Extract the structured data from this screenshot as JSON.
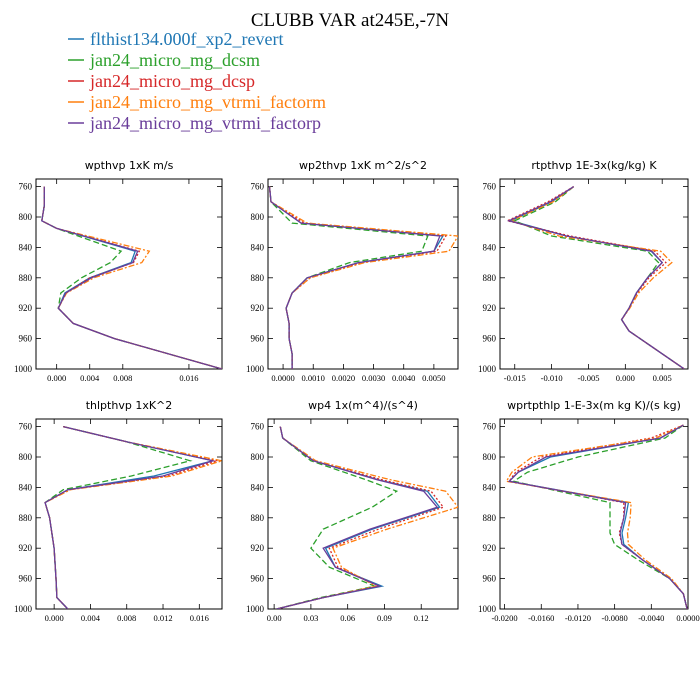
{
  "title": "CLUBB VAR at245E,-7N",
  "legend": [
    {
      "label": "flthist134.000f_xp2_revert",
      "color": "#1f77b4",
      "dash": ""
    },
    {
      "label": "jan24_micro_mg_dcsm",
      "color": "#2ca02c",
      "dash": "6,3"
    },
    {
      "label": "jan24_micro_mg_dcsp",
      "color": "#d62728",
      "dash": "2,2"
    },
    {
      "label": "jan24_micro_mg_vtrmi_factorm",
      "color": "#ff7f0e",
      "dash": "6,2,2,2"
    },
    {
      "label": "jan24_micro_mg_vtrmi_factorp",
      "color": "#6a3d9a",
      "dash": ""
    }
  ],
  "chart_data": [
    {
      "type": "line",
      "title": "wpthvp  1xK m/s",
      "xlim": [
        -0.0025,
        0.02
      ],
      "xticks": [
        0.0,
        0.004,
        0.008,
        0.016
      ],
      "xtick_labels": [
        "0.000",
        "0.004",
        "0.008",
        "0.016"
      ],
      "ylim": [
        750,
        1000
      ],
      "yticks": [
        760,
        800,
        840,
        880,
        920,
        960,
        1000
      ],
      "y": [
        760,
        785,
        805,
        815,
        845,
        860,
        880,
        900,
        920,
        940,
        960,
        1000
      ],
      "series": [
        {
          "name": "flthist134.000f_xp2_revert",
          "values": [
            -0.0015,
            -0.0015,
            -0.0018,
            0.0,
            0.0095,
            0.009,
            0.004,
            0.001,
            0.0002,
            0.002,
            0.007,
            0.02
          ]
        },
        {
          "name": "jan24_micro_mg_dcsm",
          "values": [
            -0.0015,
            -0.0015,
            -0.0018,
            0.0,
            0.0078,
            0.0065,
            0.003,
            0.0005,
            0.0002,
            0.002,
            0.007,
            0.02
          ]
        },
        {
          "name": "jan24_micro_mg_dcsp",
          "values": [
            -0.0015,
            -0.0015,
            -0.0018,
            0.0,
            0.01,
            0.0093,
            0.004,
            0.0011,
            0.0002,
            0.002,
            0.007,
            0.02
          ]
        },
        {
          "name": "jan24_micro_mg_vtrmi_factorm",
          "values": [
            -0.0015,
            -0.0015,
            -0.0018,
            0.0,
            0.0112,
            0.0103,
            0.0045,
            0.0012,
            0.0002,
            0.002,
            0.007,
            0.02
          ]
        },
        {
          "name": "jan24_micro_mg_vtrmi_factorp",
          "values": [
            -0.0015,
            -0.0015,
            -0.0018,
            0.0,
            0.0098,
            0.0092,
            0.0042,
            0.0011,
            0.0002,
            0.002,
            0.007,
            0.02
          ]
        }
      ]
    },
    {
      "type": "line",
      "title": "wp2thvp  1xK m^2/s^2",
      "xlim": [
        -0.0005,
        0.0058
      ],
      "xticks": [
        0.0,
        0.001,
        0.002,
        0.003,
        0.004,
        0.005
      ],
      "xtick_labels": [
        "0.0000",
        "0.0010",
        "0.0020",
        "0.0030",
        "0.0040",
        "0.0050"
      ],
      "ylim": [
        750,
        1000
      ],
      "yticks": [
        760,
        800,
        840,
        880,
        920,
        960,
        1000
      ],
      "y": [
        760,
        780,
        808,
        825,
        845,
        860,
        880,
        900,
        920,
        940,
        960,
        980,
        1000
      ],
      "series": [
        {
          "name": "flthist134.000f_xp2_revert",
          "values": [
            -0.00045,
            -0.0004,
            0.0006,
            0.0053,
            0.005,
            0.0025,
            0.0008,
            0.0003,
            0.0001,
            0.0002,
            0.0002,
            0.0003,
            0.0003
          ]
        },
        {
          "name": "jan24_micro_mg_dcsm",
          "values": [
            -0.00045,
            -0.0004,
            0.0003,
            0.0048,
            0.0046,
            0.0022,
            0.0008,
            0.0003,
            0.0001,
            0.0002,
            0.0002,
            0.0003,
            0.0003
          ]
        },
        {
          "name": "jan24_micro_mg_dcsp",
          "values": [
            -0.00045,
            -0.0004,
            0.0007,
            0.0054,
            0.0051,
            0.0026,
            0.0009,
            0.0003,
            0.0001,
            0.0002,
            0.0002,
            0.0003,
            0.0003
          ]
        },
        {
          "name": "jan24_micro_mg_vtrmi_factorm",
          "values": [
            -0.00045,
            -0.0004,
            0.0008,
            0.0058,
            0.0055,
            0.0027,
            0.0009,
            0.0003,
            0.0001,
            0.0002,
            0.0002,
            0.0003,
            0.0003
          ]
        },
        {
          "name": "jan24_micro_mg_vtrmi_factorp",
          "values": [
            -0.00045,
            -0.0004,
            0.0006,
            0.0052,
            0.005,
            0.0025,
            0.0008,
            0.0003,
            0.0001,
            0.0002,
            0.0002,
            0.0003,
            0.0003
          ]
        }
      ]
    },
    {
      "type": "line",
      "title": "rtpthvp  1E-3x(kg/kg) K",
      "xlim": [
        -0.017,
        0.0085
      ],
      "xticks": [
        -0.015,
        -0.01,
        -0.005,
        0.0,
        0.005
      ],
      "xtick_labels": [
        "-0.015",
        "-0.010",
        "-0.005",
        "0.000",
        "0.005"
      ],
      "ylim": [
        750,
        1000
      ],
      "yticks": [
        760,
        800,
        840,
        880,
        920,
        960,
        1000
      ],
      "y": [
        760,
        780,
        805,
        825,
        845,
        860,
        880,
        900,
        920,
        935,
        950,
        970,
        1000
      ],
      "series": [
        {
          "name": "flthist134.000f_xp2_revert",
          "values": [
            -0.007,
            -0.01,
            -0.0155,
            -0.008,
            0.0035,
            0.005,
            0.003,
            0.0015,
            0.0005,
            -0.0005,
            0.0005,
            0.0035,
            0.008
          ]
        },
        {
          "name": "jan24_micro_mg_dcsm",
          "values": [
            -0.007,
            -0.0095,
            -0.015,
            -0.01,
            0.003,
            0.0045,
            0.003,
            0.0015,
            0.0005,
            -0.0005,
            0.0005,
            0.0035,
            0.008
          ]
        },
        {
          "name": "jan24_micro_mg_dcsp",
          "values": [
            -0.007,
            -0.0105,
            -0.016,
            -0.0075,
            0.004,
            0.0055,
            0.0032,
            0.0016,
            0.0005,
            -0.0005,
            0.0005,
            0.0035,
            0.008
          ]
        },
        {
          "name": "jan24_micro_mg_vtrmi_factorm",
          "values": [
            -0.007,
            -0.0098,
            -0.0155,
            -0.009,
            0.0048,
            0.0063,
            0.0038,
            0.0018,
            0.0006,
            -0.0005,
            0.0005,
            0.0035,
            0.008
          ]
        },
        {
          "name": "jan24_micro_mg_vtrmi_factorp",
          "values": [
            -0.007,
            -0.0102,
            -0.0158,
            -0.008,
            0.0036,
            0.005,
            0.003,
            0.0015,
            0.0005,
            -0.0005,
            0.0005,
            0.0035,
            0.008
          ]
        }
      ]
    },
    {
      "type": "line",
      "title": "thlpthvp  1xK^2",
      "xlim": [
        -0.002,
        0.0185
      ],
      "xticks": [
        0.0,
        0.004,
        0.008,
        0.012,
        0.016
      ],
      "xtick_labels": [
        "0.000",
        "0.004",
        "0.008",
        "0.012",
        "0.016"
      ],
      "ylim": [
        750,
        1000
      ],
      "yticks": [
        760,
        800,
        840,
        880,
        920,
        960,
        1000
      ],
      "y": [
        760,
        780,
        805,
        825,
        843,
        860,
        880,
        920,
        960,
        985,
        1000
      ],
      "series": [
        {
          "name": "flthist134.000f_xp2_revert",
          "values": [
            0.001,
            0.008,
            0.0175,
            0.011,
            0.0015,
            -0.001,
            -0.0005,
            0.0,
            0.0002,
            0.0003,
            0.0015
          ]
        },
        {
          "name": "jan24_micro_mg_dcsm",
          "values": [
            0.001,
            0.008,
            0.015,
            0.0085,
            0.001,
            -0.001,
            -0.0005,
            0.0,
            0.0002,
            0.0003,
            0.0015
          ]
        },
        {
          "name": "jan24_micro_mg_dcsp",
          "values": [
            0.001,
            0.008,
            0.018,
            0.0125,
            0.0016,
            -0.001,
            -0.0005,
            0.0,
            0.0002,
            0.0003,
            0.0015
          ]
        },
        {
          "name": "jan24_micro_mg_vtrmi_factorm",
          "values": [
            0.001,
            0.008,
            0.0185,
            0.013,
            0.0018,
            -0.001,
            -0.0005,
            0.0,
            0.0002,
            0.0003,
            0.0015
          ]
        },
        {
          "name": "jan24_micro_mg_vtrmi_factorp",
          "values": [
            0.001,
            0.008,
            0.0175,
            0.012,
            0.0015,
            -0.001,
            -0.0005,
            0.0,
            0.0002,
            0.0003,
            0.0015
          ]
        }
      ]
    },
    {
      "type": "line",
      "title": "wp4  1x(m^4)/(s^4)",
      "xlim": [
        -0.005,
        0.15
      ],
      "xticks": [
        0.0,
        0.03,
        0.06,
        0.09,
        0.12
      ],
      "xtick_labels": [
        "0.00",
        "0.03",
        "0.06",
        "0.09",
        "0.12"
      ],
      "ylim": [
        750,
        1000
      ],
      "yticks": [
        760,
        800,
        840,
        880,
        920,
        960,
        1000
      ],
      "y": [
        760,
        775,
        805,
        830,
        845,
        866,
        895,
        920,
        945,
        970,
        985,
        1000
      ],
      "series": [
        {
          "name": "flthist134.000f_xp2_revert",
          "values": [
            0.005,
            0.007,
            0.032,
            0.085,
            0.125,
            0.135,
            0.08,
            0.042,
            0.05,
            0.088,
            0.04,
            0.002
          ]
        },
        {
          "name": "jan24_micro_mg_dcsm",
          "values": [
            0.005,
            0.007,
            0.03,
            0.075,
            0.1,
            0.08,
            0.04,
            0.03,
            0.045,
            0.082,
            0.038,
            0.002
          ]
        },
        {
          "name": "jan24_micro_mg_dcsp",
          "values": [
            0.005,
            0.007,
            0.032,
            0.088,
            0.128,
            0.138,
            0.085,
            0.045,
            0.052,
            0.086,
            0.04,
            0.002
          ]
        },
        {
          "name": "jan24_micro_mg_vtrmi_factorm",
          "values": [
            0.005,
            0.007,
            0.034,
            0.095,
            0.14,
            0.15,
            0.092,
            0.048,
            0.055,
            0.083,
            0.04,
            0.002
          ]
        },
        {
          "name": "jan24_micro_mg_vtrmi_factorp",
          "values": [
            0.005,
            0.007,
            0.032,
            0.084,
            0.122,
            0.133,
            0.078,
            0.04,
            0.05,
            0.086,
            0.04,
            0.002
          ]
        }
      ]
    },
    {
      "type": "line",
      "title": "wprtpthlp  1-E-3x(m kg K)/(s kg)",
      "xlim": [
        -0.0205,
        0.0
      ],
      "xticks": [
        -0.02,
        -0.016,
        -0.012,
        -0.008,
        -0.004,
        0.0
      ],
      "xtick_labels": [
        "-0.0200",
        "-0.0160",
        "-0.0120",
        "-0.0080",
        "-0.0040",
        "0.0000"
      ],
      "ylim": [
        750,
        1000
      ],
      "yticks": [
        760,
        800,
        840,
        880,
        920,
        960,
        1000
      ],
      "y": [
        758,
        775,
        800,
        820,
        832,
        860,
        880,
        900,
        915,
        935,
        960,
        980,
        1000
      ],
      "series": [
        {
          "name": "flthist134.000f_xp2_revert",
          "values": [
            -0.0005,
            -0.003,
            -0.015,
            -0.0185,
            -0.0195,
            -0.0065,
            -0.0068,
            -0.0072,
            -0.007,
            -0.005,
            -0.002,
            -0.0005,
            -0.0001
          ]
        },
        {
          "name": "jan24_micro_mg_dcsm",
          "values": [
            -0.0005,
            -0.0025,
            -0.012,
            -0.0175,
            -0.019,
            -0.0085,
            -0.0085,
            -0.0085,
            -0.008,
            -0.0055,
            -0.002,
            -0.0005,
            -0.0001
          ]
        },
        {
          "name": "jan24_micro_mg_dcsp",
          "values": [
            -0.0005,
            -0.004,
            -0.016,
            -0.0188,
            -0.0195,
            -0.007,
            -0.007,
            -0.0075,
            -0.0072,
            -0.005,
            -0.002,
            -0.0005,
            -0.0001
          ]
        },
        {
          "name": "jan24_micro_mg_vtrmi_factorm",
          "values": [
            -0.0005,
            -0.0035,
            -0.017,
            -0.0192,
            -0.0198,
            -0.0062,
            -0.0063,
            -0.0066,
            -0.0065,
            -0.0047,
            -0.0018,
            -0.0005,
            -0.0001
          ]
        },
        {
          "name": "jan24_micro_mg_vtrmi_factorp",
          "values": [
            -0.0005,
            -0.003,
            -0.0155,
            -0.0185,
            -0.0195,
            -0.0068,
            -0.007,
            -0.0074,
            -0.0072,
            -0.005,
            -0.002,
            -0.0005,
            -0.0001
          ]
        }
      ]
    }
  ]
}
